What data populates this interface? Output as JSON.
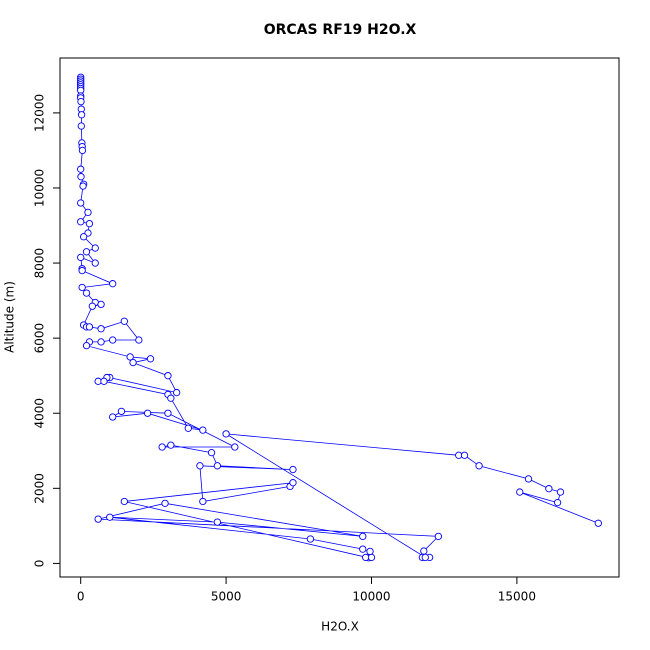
{
  "chart_data": {
    "type": "line",
    "title": "ORCAS RF19 H2O.X",
    "x_label": "H2O.X",
    "y_label": "Altitude (m)",
    "color": "#0000ff",
    "markers": true,
    "x": [
      0,
      0,
      0,
      0,
      0,
      0,
      0,
      0,
      0,
      0,
      10,
      20,
      30,
      20,
      40,
      50,
      60,
      0,
      10,
      100,
      80,
      0,
      250,
      0,
      300,
      250,
      100,
      500,
      200,
      500,
      0,
      50,
      50,
      1100,
      50,
      200,
      500,
      700,
      400,
      100,
      200,
      300,
      700,
      1500,
      2000,
      1100,
      700,
      300,
      200,
      1700,
      2400,
      1800,
      3000,
      3300,
      1000,
      900,
      600,
      800,
      3000,
      3100,
      3700,
      4200,
      2300,
      1100,
      1400,
      3000,
      5300,
      2800,
      3100,
      4500,
      4700,
      7300,
      4100,
      4200,
      7200,
      7300,
      1500,
      9900,
      9800,
      10000,
      9950,
      9700,
      7900,
      1000,
      4700,
      9700,
      2900,
      600,
      12300,
      11800,
      11750,
      12000,
      11850,
      5000,
      13000,
      13200,
      13700,
      15400,
      16100,
      16500,
      16400,
      15100,
      17800
    ],
    "values": [
      12950,
      12900,
      12850,
      12800,
      12750,
      12700,
      12650,
      12600,
      12450,
      12400,
      12300,
      12100,
      11950,
      11650,
      11200,
      11100,
      11000,
      10500,
      10300,
      10100,
      10050,
      9600,
      9350,
      9100,
      9050,
      8800,
      8700,
      8400,
      8300,
      8000,
      8150,
      7850,
      7800,
      7450,
      7350,
      7200,
      6950,
      6900,
      6850,
      6350,
      6300,
      6300,
      6250,
      6450,
      5950,
      5950,
      5900,
      5900,
      5800,
      5500,
      5450,
      5350,
      5000,
      4550,
      4950,
      4950,
      4850,
      4850,
      4500,
      4400,
      3600,
      3550,
      4000,
      3900,
      4050,
      4000,
      3100,
      3100,
      3150,
      2950,
      2600,
      2500,
      2600,
      1650,
      2050,
      2150,
      1650,
      150,
      160,
      160,
      320,
      380,
      650,
      1230,
      1100,
      720,
      1600,
      1180,
      720,
      330,
      160,
      160,
      160,
      3450,
      2880,
      2880,
      2600,
      2250,
      1990,
      1900,
      1620,
      1900,
      1070
    ],
    "xlim": [
      -712,
      18512
    ],
    "ylim": [
      -362,
      13462
    ],
    "xticks": [
      0,
      5000,
      10000,
      15000
    ],
    "yticks": [
      0,
      2000,
      4000,
      6000,
      8000,
      10000,
      12000
    ]
  }
}
